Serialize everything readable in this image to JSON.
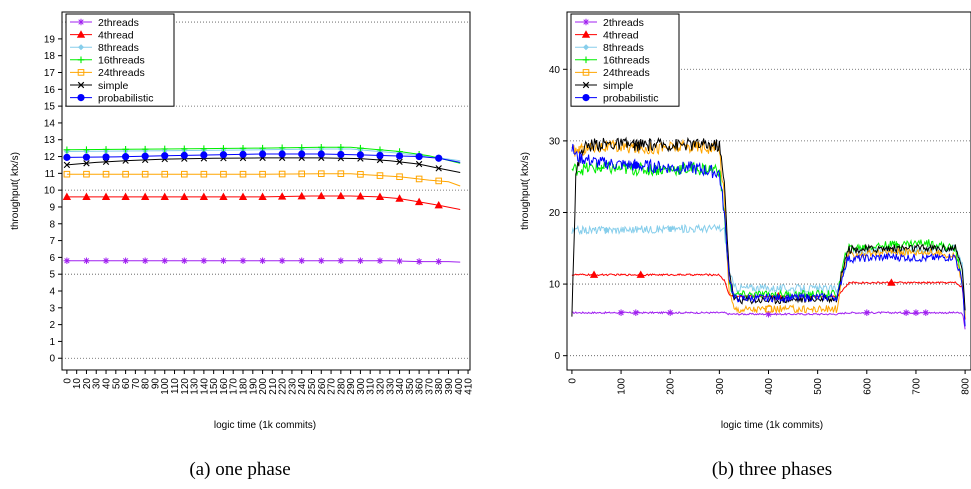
{
  "chart_data": [
    {
      "type": "line",
      "caption": "(a)  one phase",
      "xlabel": "logic time (1k commits)",
      "ylabel": "throughput( ktx/s)",
      "xlim": [
        -5,
        412
      ],
      "ylim": [
        -0.7,
        20.6
      ],
      "x_ticks": [
        0,
        10,
        20,
        30,
        40,
        50,
        60,
        70,
        80,
        90,
        100,
        110,
        120,
        130,
        140,
        150,
        160,
        170,
        180,
        190,
        200,
        210,
        220,
        230,
        240,
        250,
        260,
        270,
        280,
        290,
        300,
        310,
        320,
        330,
        340,
        350,
        360,
        370,
        380,
        390,
        400,
        410
      ],
      "y_ticks": [
        0,
        1,
        2,
        3,
        4,
        5,
        6,
        7,
        8,
        9,
        10,
        11,
        12,
        13,
        14,
        15,
        16,
        17,
        18,
        19
      ],
      "gridlines_y": [
        0,
        5,
        10,
        15,
        20
      ],
      "legend_position": "top-left",
      "series": [
        {
          "name": "2threads",
          "color": "#a020f0",
          "marker": "asterisk",
          "points": [
            [
              0,
              5.8
            ],
            [
              100,
              5.8
            ],
            [
              200,
              5.8
            ],
            [
              300,
              5.8
            ],
            [
              330,
              5.8
            ],
            [
              360,
              5.75
            ],
            [
              390,
              5.75
            ],
            [
              402,
              5.72
            ]
          ]
        },
        {
          "name": "4thread",
          "color": "#ff0000",
          "marker": "triangle",
          "points": [
            [
              0,
              9.6
            ],
            [
              100,
              9.6
            ],
            [
              200,
              9.6
            ],
            [
              250,
              9.65
            ],
            [
              290,
              9.65
            ],
            [
              320,
              9.6
            ],
            [
              340,
              9.5
            ],
            [
              360,
              9.3
            ],
            [
              380,
              9.1
            ],
            [
              402,
              8.85
            ]
          ]
        },
        {
          "name": "8threads",
          "color": "#87ceeb",
          "marker": "diamond",
          "points": [
            [
              0,
              12.3
            ],
            [
              100,
              12.35
            ],
            [
              200,
              12.4
            ],
            [
              260,
              12.45
            ],
            [
              290,
              12.45
            ],
            [
              310,
              12.35
            ],
            [
              340,
              12.2
            ],
            [
              370,
              12.0
            ],
            [
              402,
              11.75
            ]
          ]
        },
        {
          "name": "16threads",
          "color": "#00ee00",
          "marker": "plus",
          "points": [
            [
              0,
              12.4
            ],
            [
              100,
              12.45
            ],
            [
              200,
              12.5
            ],
            [
              260,
              12.55
            ],
            [
              290,
              12.55
            ],
            [
              310,
              12.45
            ],
            [
              340,
              12.3
            ],
            [
              370,
              12.05
            ],
            [
              402,
              11.6
            ]
          ]
        },
        {
          "name": "24threads",
          "color": "#ffa500",
          "marker": "square",
          "points": [
            [
              0,
              10.95
            ],
            [
              100,
              10.95
            ],
            [
              200,
              10.95
            ],
            [
              260,
              10.98
            ],
            [
              290,
              10.98
            ],
            [
              310,
              10.9
            ],
            [
              340,
              10.8
            ],
            [
              370,
              10.6
            ],
            [
              390,
              10.5
            ],
            [
              402,
              10.25
            ]
          ]
        },
        {
          "name": "simple",
          "color": "#000000",
          "marker": "x",
          "points": [
            [
              0,
              11.5
            ],
            [
              30,
              11.65
            ],
            [
              60,
              11.75
            ],
            [
              100,
              11.85
            ],
            [
              150,
              11.9
            ],
            [
              200,
              11.92
            ],
            [
              260,
              11.92
            ],
            [
              300,
              11.88
            ],
            [
              330,
              11.75
            ],
            [
              360,
              11.55
            ],
            [
              380,
              11.3
            ],
            [
              402,
              11.05
            ]
          ]
        },
        {
          "name": "probabilistic",
          "color": "#0000ff",
          "marker": "circle",
          "points": [
            [
              0,
              11.95
            ],
            [
              50,
              11.98
            ],
            [
              100,
              12.05
            ],
            [
              150,
              12.1
            ],
            [
              200,
              12.15
            ],
            [
              260,
              12.15
            ],
            [
              300,
              12.1
            ],
            [
              330,
              12.05
            ],
            [
              360,
              12.0
            ],
            [
              380,
              11.9
            ],
            [
              402,
              11.65
            ]
          ]
        }
      ]
    },
    {
      "type": "line",
      "caption": "(b)  three phases",
      "xlabel": "logic time (1k commits)",
      "ylabel": "throughput( ktx/s)",
      "xlim": [
        -10,
        812
      ],
      "ylim": [
        -2,
        48
      ],
      "x_ticks": [
        0,
        100,
        200,
        300,
        400,
        500,
        600,
        700,
        800
      ],
      "y_ticks": [
        0,
        10,
        20,
        30,
        40
      ],
      "gridlines_y": [
        0,
        10,
        20,
        30,
        40
      ],
      "legend_position": "top-left",
      "series": [
        {
          "name": "2threads",
          "color": "#a020f0",
          "marker": "asterisk",
          "points": [
            [
              0,
              6
            ],
            [
              310,
              6
            ],
            [
              320,
              5.8
            ],
            [
              540,
              5.8
            ],
            [
              560,
              6
            ],
            [
              780,
              6
            ],
            [
              795,
              5.9
            ],
            [
              800,
              3.6
            ]
          ]
        },
        {
          "name": "4thread",
          "color": "#ff0000",
          "marker": "triangle",
          "points": [
            [
              0,
              11.3
            ],
            [
              300,
              11.3
            ],
            [
              310,
              10.5
            ],
            [
              320,
              8.5
            ],
            [
              330,
              8.3
            ],
            [
              540,
              8.3
            ],
            [
              555,
              9.5
            ],
            [
              565,
              10.2
            ],
            [
              780,
              10.2
            ],
            [
              795,
              9.5
            ],
            [
              800,
              5
            ]
          ]
        },
        {
          "name": "8threads",
          "color": "#87ceeb",
          "marker": "diamond",
          "points": [
            [
              0,
              17.2
            ],
            [
              10,
              17.5
            ],
            [
              300,
              17.8
            ],
            [
              310,
              17.5
            ],
            [
              320,
              12
            ],
            [
              330,
              9.5
            ],
            [
              540,
              9.3
            ],
            [
              555,
              12
            ],
            [
              565,
              14.5
            ],
            [
              780,
              15
            ],
            [
              795,
              13
            ],
            [
              800,
              6
            ]
          ]
        },
        {
          "name": "16threads",
          "color": "#00ee00",
          "marker": "plus",
          "points": [
            [
              0,
              26
            ],
            [
              50,
              26.2
            ],
            [
              150,
              26
            ],
            [
              250,
              26.1
            ],
            [
              300,
              26
            ],
            [
              310,
              20
            ],
            [
              320,
              10
            ],
            [
              330,
              8.5
            ],
            [
              540,
              8.6
            ],
            [
              550,
              12
            ],
            [
              560,
              15
            ],
            [
              650,
              15.5
            ],
            [
              720,
              15.8
            ],
            [
              780,
              15
            ],
            [
              795,
              10
            ],
            [
              800,
              6
            ]
          ]
        },
        {
          "name": "24threads",
          "color": "#ffa500",
          "marker": "square",
          "points": [
            [
              0,
              28.5
            ],
            [
              50,
              29.2
            ],
            [
              150,
              29
            ],
            [
              250,
              29.2
            ],
            [
              300,
              29
            ],
            [
              310,
              22
            ],
            [
              320,
              9
            ],
            [
              330,
              6.5
            ],
            [
              540,
              6.5
            ],
            [
              550,
              11
            ],
            [
              560,
              14
            ],
            [
              650,
              14.5
            ],
            [
              720,
              14.5
            ],
            [
              780,
              14
            ],
            [
              795,
              10
            ],
            [
              800,
              6
            ]
          ]
        },
        {
          "name": "simple",
          "color": "#000000",
          "marker": "x",
          "points": [
            [
              0,
              6
            ],
            [
              8,
              25
            ],
            [
              20,
              29
            ],
            [
              50,
              29.6
            ],
            [
              150,
              29.4
            ],
            [
              250,
              29.5
            ],
            [
              300,
              29.4
            ],
            [
              310,
              24
            ],
            [
              320,
              12
            ],
            [
              330,
              7.8
            ],
            [
              400,
              7.8
            ],
            [
              540,
              8
            ],
            [
              550,
              12
            ],
            [
              560,
              14.8
            ],
            [
              650,
              15
            ],
            [
              720,
              15
            ],
            [
              780,
              15
            ],
            [
              795,
              12
            ],
            [
              800,
              6
            ]
          ]
        },
        {
          "name": "probabilistic",
          "color": "#0000ff",
          "marker": "circle",
          "points": [
            [
              0,
              29
            ],
            [
              10,
              27.8
            ],
            [
              50,
              27
            ],
            [
              100,
              26.7
            ],
            [
              150,
              26.5
            ],
            [
              200,
              26.3
            ],
            [
              250,
              26.2
            ],
            [
              300,
              25.5
            ],
            [
              310,
              20
            ],
            [
              320,
              11
            ],
            [
              330,
              8
            ],
            [
              540,
              8.2
            ],
            [
              550,
              11
            ],
            [
              560,
              13.5
            ],
            [
              650,
              13.8
            ],
            [
              720,
              13.6
            ],
            [
              780,
              13.8
            ],
            [
              795,
              10
            ],
            [
              800,
              4
            ]
          ]
        }
      ]
    }
  ]
}
